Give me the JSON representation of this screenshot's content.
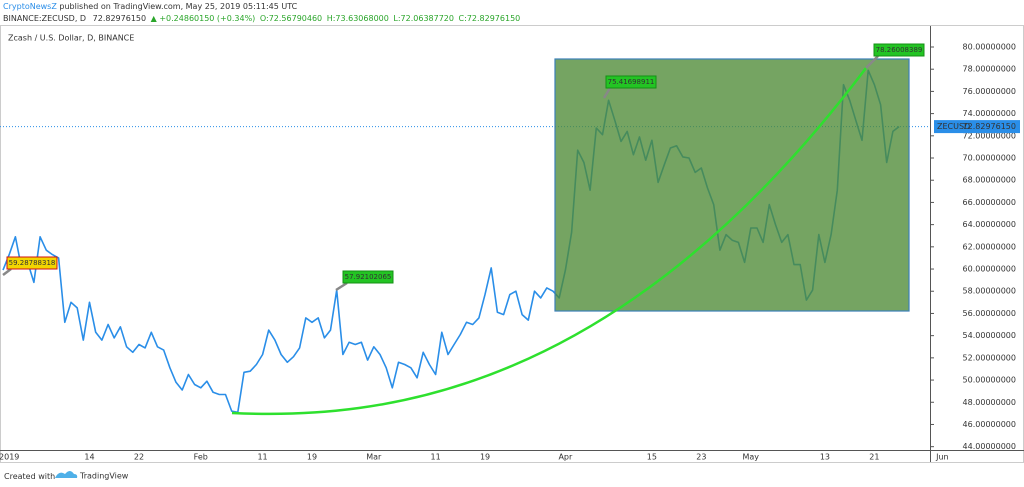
{
  "header": {
    "author": "CryptoNewsZ",
    "text": "published on TradingView.com, May 25, 2019 05:11:45 UTC"
  },
  "symbol_bar": {
    "symbol": "BINANCE:ZECUSD, D",
    "last": "72.82976150",
    "change": "▲ +0.24860150 (+0.34%)",
    "ohlc": [
      "O:72.56790460",
      "H:73.63068000",
      "L:72.06387720",
      "C:72.82976150"
    ]
  },
  "footer": {
    "text": "Created with",
    "brand": "TradingView"
  },
  "chart_data": {
    "type": "line",
    "title": "Zcash / U.S. Dollar, D, BINANCE",
    "categories": [
      null,
      "2019",
      null,
      null,
      null,
      null,
      null,
      null,
      null,
      null,
      null,
      null,
      null,
      null,
      "14",
      null,
      null,
      null,
      null,
      null,
      null,
      null,
      "22",
      null,
      null,
      null,
      null,
      null,
      null,
      null,
      null,
      null,
      "Feb",
      null,
      null,
      null,
      null,
      null,
      null,
      null,
      null,
      null,
      "11",
      null,
      null,
      null,
      null,
      null,
      null,
      null,
      "19",
      null,
      null,
      null,
      null,
      null,
      null,
      null,
      null,
      null,
      "Mar",
      null,
      null,
      null,
      null,
      null,
      null,
      null,
      null,
      null,
      "11",
      null,
      null,
      null,
      null,
      null,
      null,
      null,
      "19",
      null,
      null,
      null,
      null,
      null,
      null,
      null,
      null,
      null,
      null,
      null,
      null,
      "Apr",
      null,
      null,
      null,
      null,
      null,
      null,
      null,
      null,
      null,
      null,
      null,
      null,
      null,
      "15",
      null,
      null,
      null,
      null,
      null,
      null,
      null,
      "23",
      null,
      null,
      null,
      null,
      null,
      null,
      null,
      "May",
      null,
      null,
      null,
      null,
      null,
      null,
      null,
      null,
      null,
      null,
      null,
      "13",
      null,
      null,
      null,
      null,
      null,
      null,
      null,
      "21",
      null,
      null,
      null,
      null,
      null,
      null,
      null,
      null,
      null,
      null,
      "Jun"
    ],
    "series": [
      {
        "name": "ZECUSD",
        "color": "#2a8ee8",
        "values": [
          59.9,
          61.3,
          62.9,
          60.1,
          60.6,
          58.8,
          62.9,
          61.7,
          61.3,
          61.0,
          55.2,
          57.0,
          56.5,
          53.6,
          57.0,
          54.3,
          53.6,
          55.0,
          53.8,
          54.8,
          53.0,
          52.5,
          53.2,
          52.9,
          54.3,
          53.0,
          52.7,
          51.1,
          49.8,
          49.1,
          50.5,
          49.6,
          49.3,
          49.9,
          48.9,
          48.7,
          48.7,
          47.2,
          47.1,
          50.7,
          50.8,
          51.4,
          52.3,
          54.5,
          53.6,
          52.3,
          51.6,
          52.1,
          52.9,
          55.6,
          55.2,
          55.6,
          53.8,
          54.5,
          58.1,
          52.3,
          53.4,
          53.2,
          53.4,
          51.8,
          53.0,
          52.3,
          51.1,
          49.3,
          51.6,
          51.4,
          51.1,
          50.2,
          52.5,
          51.4,
          50.5,
          54.3,
          52.3,
          53.2,
          54.1,
          55.2,
          55.0,
          55.6,
          57.7,
          60.1,
          56.1,
          55.9,
          57.7,
          58.0,
          55.9,
          55.4,
          58.0,
          57.4,
          58.3,
          58.0,
          57.4,
          59.9,
          63.3,
          70.7,
          69.6,
          67.1,
          72.7,
          72.1,
          75.2,
          73.4,
          71.5,
          72.4,
          70.3,
          71.9,
          69.8,
          71.6,
          67.8,
          69.4,
          70.9,
          71.1,
          70.1,
          70.0,
          68.7,
          69.1,
          67.3,
          65.8,
          61.7,
          63.1,
          62.6,
          62.4,
          60.6,
          63.7,
          63.7,
          62.4,
          65.8,
          64.0,
          62.4,
          63.1,
          60.4,
          60.4,
          57.2,
          58.1,
          63.1,
          60.6,
          63.1,
          67.1,
          76.6,
          75.2,
          73.4,
          71.6,
          77.9,
          76.6,
          74.8,
          69.6,
          72.4,
          72.83,
          null,
          null,
          null,
          null,
          null,
          null,
          null
        ]
      }
    ],
    "ylim": [
      43.7,
      80.9
    ],
    "yticks": [
      {
        "value": 80,
        "label": "80.00000000"
      },
      {
        "value": 78,
        "label": "78.00000000"
      },
      {
        "value": 76,
        "label": "76.00000000"
      },
      {
        "value": 74,
        "label": "74.00000000"
      },
      {
        "value": 72,
        "label": "72.00000000"
      },
      {
        "value": 70,
        "label": "70.00000000"
      },
      {
        "value": 68,
        "label": "68.00000000"
      },
      {
        "value": 66,
        "label": "66.00000000"
      },
      {
        "value": 64,
        "label": "64.00000000"
      },
      {
        "value": 62,
        "label": "62.00000000"
      },
      {
        "value": 60,
        "label": "60.00000000"
      },
      {
        "value": 58,
        "label": "58.00000000"
      },
      {
        "value": 56,
        "label": "56.00000000"
      },
      {
        "value": 54,
        "label": "54.00000000"
      },
      {
        "value": 52,
        "label": "52.00000000"
      },
      {
        "value": 50,
        "label": "50.00000000"
      },
      {
        "value": 48,
        "label": "48.00000000"
      },
      {
        "value": 46,
        "label": "46.00000000"
      },
      {
        "value": 44,
        "label": "44.00000000"
      }
    ],
    "grid": false,
    "price_tag": {
      "symbol": "ZECUSD",
      "price": {
        "value": 72.8297615,
        "label": "72.82976150"
      }
    },
    "annotations": [
      "59.28788318",
      "57.92102065",
      "75.41698911",
      "78.26008389"
    ]
  }
}
